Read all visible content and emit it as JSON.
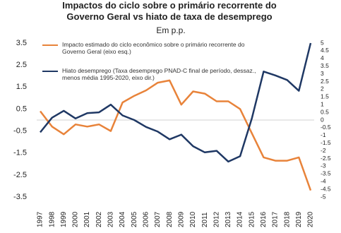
{
  "chart_data": {
    "type": "line",
    "title": "Impactos do ciclo sobre o primário recorrente do Governo Geral vs hiato de taxa de desemprego",
    "subtitle": "Em p.p.",
    "categories": [
      "1997",
      "1998",
      "1999",
      "2000",
      "2001",
      "2002",
      "2003",
      "2004",
      "2005",
      "2006",
      "2007",
      "2008",
      "2009",
      "2010",
      "2011",
      "2012",
      "2013",
      "2014",
      "2015",
      "2016",
      "2017",
      "2018",
      "2019",
      "2020"
    ],
    "series": [
      {
        "name": "Impacto estimado do ciclo econômico sobre o primário recorrente do Governo Geral (eixo esq.)",
        "color": "#e8833a",
        "values": [
          0.4,
          -0.3,
          -0.65,
          -0.2,
          -0.3,
          -0.2,
          -0.5,
          0.8,
          1.1,
          1.35,
          1.7,
          1.8,
          0.7,
          1.3,
          1.2,
          0.85,
          0.85,
          0.5,
          -0.6,
          -1.7,
          -1.85,
          -1.85,
          -1.7,
          -3.2
        ]
      },
      {
        "name": "Hiato desemprego (Taxa desemprego PNAD-C final de período, dessaz., menos média 1995-2020, eixo dir.)",
        "color": "#1f3864",
        "axis": "y2",
        "values": [
          -0.8,
          0.15,
          0.6,
          0.1,
          0.45,
          0.5,
          1.0,
          0.3,
          0,
          -0.45,
          -0.75,
          -1.25,
          -0.95,
          -1.7,
          -2.1,
          -2.0,
          -2.7,
          -2.35,
          0.1,
          3.15,
          2.9,
          2.6,
          1.9,
          5.0
        ]
      }
    ],
    "ylim": [
      -3.5,
      3.5
    ],
    "yticks": [
      -3.5,
      -2.5,
      -1.5,
      -0.5,
      0.5,
      1.5,
      2.5,
      3.5
    ],
    "y2lim": [
      -5,
      5
    ],
    "y2ticks": [
      -5,
      -4.5,
      -4,
      -3.5,
      -3,
      -2.5,
      -2,
      -1.5,
      -1,
      -0.5,
      0,
      0.5,
      1,
      1.5,
      2,
      2.5,
      3,
      3.5,
      4,
      4.5,
      5
    ]
  }
}
